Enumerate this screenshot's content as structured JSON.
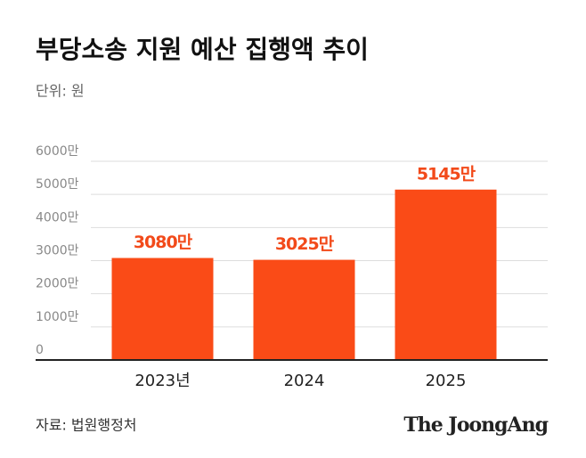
{
  "chart_data": {
    "type": "bar",
    "title": "부당소송 지원 예산 집행액 추이",
    "subtitle": "단위: 원",
    "categories": [
      "2023년",
      "2024",
      "2025"
    ],
    "values": [
      3080,
      3025,
      5145
    ],
    "value_labels": [
      "3080만",
      "3025만",
      "5145만"
    ],
    "color": "#fa4b17",
    "ylim": [
      0,
      6000
    ],
    "yticks": [
      0,
      {
        "value": 1000,
        "label": "1000만"
      },
      {
        "value": 2000,
        "label": "2000만"
      },
      {
        "value": 3000,
        "label": "3000만"
      },
      {
        "value": 4000,
        "label": "4000만"
      },
      {
        "value": 5000,
        "label": "5000만"
      },
      {
        "value": 6000,
        "label": "6000만"
      }
    ],
    "grid": true,
    "source": "자료: 법원행정처",
    "brand": "The JoongAng"
  }
}
